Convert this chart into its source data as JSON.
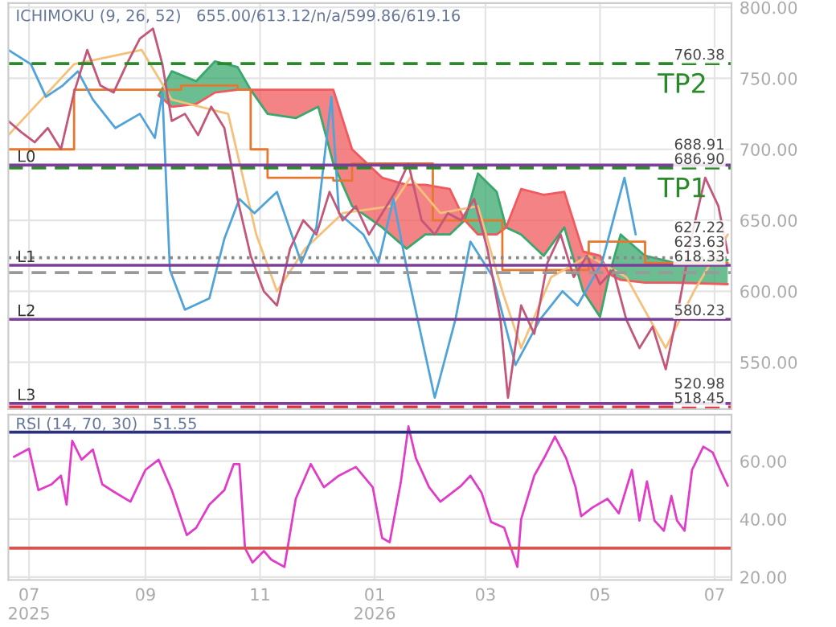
{
  "chart_data": [
    {
      "type": "line",
      "title": "ICHIMOKU (9, 26, 52)   655.00/613.12/n/a/599.86/619.16",
      "tick_labels": "y",
      "grid": true,
      "xlim": [
        "2025-06-20",
        "2026-07-10"
      ],
      "xticks": [
        {
          "value": "2025-07-01",
          "label": null
        },
        {
          "value": "2025-09-01",
          "label": null
        },
        {
          "value": "2025-11-01",
          "label": null
        },
        {
          "value": "2026-01-01",
          "label": null
        },
        {
          "value": "2026-03-01",
          "label": null
        },
        {
          "value": "2026-05-01",
          "label": null
        },
        {
          "value": "2026-07-01",
          "label": null
        }
      ],
      "ylim": [
        517,
        803
      ],
      "yticks": [
        {
          "value": 550,
          "label": "550.00"
        },
        {
          "value": 600,
          "label": "600.00"
        },
        {
          "value": 650,
          "label": "650.00"
        },
        {
          "value": 700,
          "label": "700.00"
        },
        {
          "value": 750,
          "label": "750.00"
        },
        {
          "value": 800,
          "label": "800.00"
        }
      ],
      "series": [
        {
          "type": "line",
          "color": "#3aa76d",
          "x": [
            "2025-09-08",
            "2025-09-15",
            "2025-09-28",
            "2025-10-08",
            "2025-10-20",
            "2025-10-27",
            "2025-11-05",
            "2025-11-20",
            "2025-12-02",
            "2025-12-10",
            "2025-12-20",
            "2026-01-05",
            "2026-01-18",
            "2026-01-28",
            "2026-02-10",
            "2026-02-18",
            "2026-02-25",
            "2026-03-07",
            "2026-03-12",
            "2026-03-20",
            "2026-04-01",
            "2026-04-12",
            "2026-04-22",
            "2026-05-01",
            "2026-05-06",
            "2026-05-12",
            "2026-05-25",
            "2026-06-10",
            "2026-07-08"
          ],
          "values": [
            738,
            755,
            748,
            762,
            758,
            742,
            725,
            722,
            730,
            690,
            660,
            645,
            630,
            640,
            640,
            650,
            683,
            670,
            645,
            640,
            625,
            645,
            600,
            582,
            612,
            640,
            625,
            620,
            622
          ],
          "lower": [
            738,
            730,
            732,
            740,
            742,
            742,
            null,
            null,
            null,
            null,
            null,
            null,
            null,
            null,
            null,
            650,
            640,
            640,
            645,
            null,
            null,
            null,
            null,
            null,
            612,
            608,
            606,
            606,
            605
          ],
          "upper": [
            738,
            755,
            748,
            762,
            758,
            742,
            null,
            null,
            null,
            null,
            null,
            null,
            null,
            null,
            null,
            650,
            683,
            670,
            645,
            null,
            null,
            null,
            null,
            null,
            612,
            640,
            625,
            620,
            622
          ]
        },
        {
          "type": "line",
          "color": "#f0595e",
          "x": [
            "2025-09-08",
            "2025-09-15",
            "2025-09-28",
            "2025-10-08",
            "2025-10-20",
            "2025-10-27",
            "2025-11-05",
            "2025-11-20",
            "2025-12-02",
            "2025-12-10",
            "2025-12-20",
            "2026-01-05",
            "2026-01-18",
            "2026-01-28",
            "2026-02-10",
            "2026-02-18",
            "2026-02-25",
            "2026-03-07",
            "2026-03-12",
            "2026-03-20",
            "2026-04-01",
            "2026-04-12",
            "2026-04-22",
            "2026-05-01",
            "2026-05-06",
            "2026-05-12",
            "2026-05-25",
            "2026-06-10",
            "2026-07-08"
          ],
          "values": [
            738,
            730,
            732,
            740,
            742,
            742,
            742,
            742,
            742,
            742,
            700,
            680,
            675,
            675,
            672,
            650,
            640,
            640,
            645,
            672,
            668,
            670,
            628,
            625,
            612,
            608,
            606,
            606,
            605
          ],
          "lower": [
            null,
            null,
            null,
            null,
            null,
            742,
            725,
            722,
            730,
            690,
            660,
            645,
            630,
            640,
            640,
            650,
            null,
            null,
            645,
            640,
            625,
            645,
            600,
            582,
            612,
            null,
            null,
            null,
            null
          ],
          "upper": [
            null,
            null,
            null,
            null,
            null,
            742,
            742,
            742,
            742,
            742,
            700,
            680,
            675,
            675,
            672,
            650,
            null,
            null,
            645,
            672,
            668,
            670,
            628,
            625,
            612,
            null,
            null,
            null,
            null
          ]
        },
        {
          "type": "step",
          "color": "#e8772e",
          "x": [
            "2025-06-20",
            "2025-07-20",
            "2025-07-25",
            "2025-09-20",
            "2025-10-20",
            "2025-10-27",
            "2025-11-05",
            "2025-12-10",
            "2025-12-20",
            "2026-01-20",
            "2026-02-01",
            "2026-03-05",
            "2026-03-10",
            "2026-04-20",
            "2026-04-25",
            "2026-05-20",
            "2026-05-25",
            "2026-06-20",
            "2026-07-08"
          ],
          "values": [
            700,
            700,
            742,
            745,
            742,
            700,
            680,
            678,
            690,
            690,
            650,
            650,
            615,
            615,
            635,
            635,
            620,
            620,
            620
          ]
        },
        {
          "color": "#f5c07a",
          "x": [
            "2025-06-20",
            "2025-07-25",
            "2025-08-30",
            "2025-09-15",
            "2025-10-15",
            "2025-10-30",
            "2025-11-10",
            "2025-11-25",
            "2025-12-15",
            "2026-01-10",
            "2026-01-20",
            "2026-02-05",
            "2026-02-25",
            "2026-03-10",
            "2026-03-20",
            "2026-04-05",
            "2026-04-25",
            "2026-05-15",
            "2026-06-05",
            "2026-06-20",
            "2026-07-08"
          ],
          "values": [
            710,
            760,
            770,
            735,
            725,
            640,
            600,
            630,
            655,
            660,
            680,
            655,
            660,
            600,
            560,
            610,
            625,
            610,
            560,
            600,
            640
          ]
        },
        {
          "color": "#4fa3d9",
          "x": [
            "2025-06-20",
            "2025-07-02",
            "2025-07-10",
            "2025-07-19",
            "2025-07-27",
            "2025-08-04",
            "2025-08-16",
            "2025-08-29",
            "2025-09-06",
            "2025-09-10",
            "2025-09-14",
            "2025-09-22",
            "2025-10-05",
            "2025-10-13",
            "2025-10-21",
            "2025-10-29",
            "2025-11-10",
            "2025-11-23",
            "2025-12-01",
            "2025-12-09",
            "2025-12-13",
            "2025-12-26",
            "2026-01-03",
            "2026-01-11",
            "2026-01-19",
            "2026-02-02",
            "2026-02-13",
            "2026-02-21",
            "2026-03-05",
            "2026-03-17",
            "2026-03-30",
            "2026-04-11",
            "2026-04-19",
            "2026-05-02",
            "2026-05-14",
            "2026-05-20"
          ],
          "values": [
            770,
            760,
            737,
            745,
            755,
            735,
            715,
            725,
            708,
            740,
            615,
            587,
            595,
            637,
            665,
            655,
            670,
            620,
            645,
            737,
            655,
            640,
            620,
            665,
            610,
            525,
            580,
            635,
            610,
            548,
            580,
            600,
            590,
            620,
            680,
            640
          ]
        },
        {
          "color": "#c2577a",
          "x": [
            "2025-06-20",
            "2025-06-27",
            "2025-07-04",
            "2025-07-11",
            "2025-07-18",
            "2025-07-25",
            "2025-08-01",
            "2025-08-08",
            "2025-08-15",
            "2025-08-22",
            "2025-08-29",
            "2025-09-05",
            "2025-09-10",
            "2025-09-15",
            "2025-09-22",
            "2025-09-29",
            "2025-10-06",
            "2025-10-13",
            "2025-10-20",
            "2025-10-27",
            "2025-11-03",
            "2025-11-10",
            "2025-11-17",
            "2025-11-24",
            "2025-12-01",
            "2025-12-08",
            "2025-12-15",
            "2025-12-22",
            "2025-12-29",
            "2026-01-05",
            "2026-01-12",
            "2026-01-19",
            "2026-01-26",
            "2026-02-02",
            "2026-02-09",
            "2026-02-16",
            "2026-02-23",
            "2026-03-02",
            "2026-03-09",
            "2026-03-13",
            "2026-03-20",
            "2026-03-27",
            "2026-04-03",
            "2026-04-10",
            "2026-04-17",
            "2026-04-24",
            "2026-05-01",
            "2026-05-08",
            "2026-05-15",
            "2026-05-22",
            "2026-05-29",
            "2026-06-05",
            "2026-06-12",
            "2026-06-19",
            "2026-06-26",
            "2026-07-03",
            "2026-07-08"
          ],
          "values": [
            720,
            712,
            705,
            715,
            700,
            740,
            770,
            745,
            740,
            760,
            778,
            785,
            760,
            720,
            725,
            710,
            730,
            715,
            665,
            625,
            600,
            590,
            630,
            650,
            640,
            670,
            650,
            660,
            640,
            655,
            670,
            690,
            650,
            640,
            655,
            650,
            665,
            630,
            580,
            525,
            590,
            570,
            620,
            640,
            610,
            625,
            605,
            615,
            580,
            560,
            575,
            545,
            590,
            640,
            680,
            660,
            627
          ]
        }
      ],
      "ref_lines": [
        {
          "axis": "y",
          "value": 760.38,
          "label": "TP2",
          "color": "#2a8a2a",
          "line_style": "dashed"
        },
        {
          "axis": "y",
          "value": 686.9,
          "label": "TP1",
          "color": "#2a8a2a",
          "line_style": "dashed"
        },
        {
          "axis": "y",
          "value": 688.91,
          "label": "L0",
          "color": "#7b3f98",
          "line_style": "solid"
        },
        {
          "axis": "y",
          "value": 623.63,
          "color": "#888888",
          "line_style": "dotted"
        },
        {
          "axis": "y",
          "value": 618.33,
          "label": "L1",
          "color": "#7b3f98",
          "line_style": "solid"
        },
        {
          "axis": "y",
          "value": 613.12,
          "color": "#999999",
          "line_style": "dashed"
        },
        {
          "axis": "y",
          "value": 580.23,
          "label": "L2",
          "color": "#7b3f98",
          "line_style": "solid"
        },
        {
          "axis": "y",
          "value": 520.98,
          "label": "L3",
          "color": "#7b3f98",
          "line_style": "solid"
        },
        {
          "axis": "y",
          "value": 518.45,
          "color": "#e03040",
          "line_style": "dashed"
        }
      ],
      "annotations": [
        {
          "text": "760.38",
          "x": "2026-07-10",
          "y": 760.38
        },
        {
          "text": "688.91",
          "x": "2026-07-10",
          "y": 688.91
        },
        {
          "text": "686.90",
          "x": "2026-07-10",
          "y": 686.9
        },
        {
          "text": "623.63",
          "x": "2026-07-10",
          "y": 623.63
        },
        {
          "text": "618.33",
          "x": "2026-07-10",
          "y": 618.33
        },
        {
          "text": "580.23",
          "x": "2026-07-10",
          "y": 580.23
        },
        {
          "text": "520.98",
          "x": "2026-07-10",
          "y": 520.98
        },
        {
          "text": "518.45",
          "x": "2026-07-10",
          "y": 518.45
        },
        {
          "text": "627.22",
          "x": "2026-07-10",
          "y": 627.22
        }
      ]
    },
    {
      "type": "line",
      "title": "RSI (14, 70, 30)   51.55",
      "grid": true,
      "xlim": [
        "2025-06-20",
        "2026-07-10"
      ],
      "xticks": [
        {
          "value": "2025-07-01",
          "label": "07\n2025"
        },
        {
          "value": "2025-09-01",
          "label": "09"
        },
        {
          "value": "2025-11-01",
          "label": "11"
        },
        {
          "value": "2026-01-01",
          "label": "01\n2026"
        },
        {
          "value": "2026-03-01",
          "label": "03"
        },
        {
          "value": "2026-05-01",
          "label": "05"
        },
        {
          "value": "2026-07-01",
          "label": "07"
        }
      ],
      "ylim": [
        19,
        76
      ],
      "yticks": [
        {
          "value": 20,
          "label": "20.00"
        },
        {
          "value": 40,
          "label": "40.00"
        },
        {
          "value": 60,
          "label": "60.00"
        }
      ],
      "series": [
        {
          "color": "#e03cc8",
          "x": [
            "2025-06-23",
            "2025-07-01",
            "2025-07-06",
            "2025-07-13",
            "2025-07-18",
            "2025-07-21",
            "2025-07-24",
            "2025-07-29",
            "2025-08-04",
            "2025-08-09",
            "2025-08-15",
            "2025-08-24",
            "2025-09-01",
            "2025-09-08",
            "2025-09-15",
            "2025-09-23",
            "2025-09-28",
            "2025-10-05",
            "2025-10-13",
            "2025-10-18",
            "2025-10-21",
            "2025-10-24",
            "2025-10-28",
            "2025-11-03",
            "2025-11-07",
            "2025-11-14",
            "2025-11-20",
            "2025-11-28",
            "2025-12-05",
            "2025-12-13",
            "2025-12-22",
            "2025-12-31",
            "2026-01-05",
            "2026-01-09",
            "2026-01-15",
            "2026-01-19",
            "2026-01-23",
            "2026-01-30",
            "2026-02-05",
            "2026-02-11",
            "2026-02-16",
            "2026-02-21",
            "2026-02-27",
            "2026-03-04",
            "2026-03-11",
            "2026-03-18",
            "2026-03-20",
            "2026-03-27",
            "2026-04-02",
            "2026-04-07",
            "2026-04-13",
            "2026-04-18",
            "2026-04-21",
            "2026-04-27",
            "2026-05-05",
            "2026-05-11",
            "2026-05-18",
            "2026-05-22",
            "2026-05-26",
            "2026-05-30",
            "2026-06-04",
            "2026-06-08",
            "2026-06-11",
            "2026-06-15",
            "2026-06-19",
            "2026-06-25",
            "2026-06-30",
            "2026-07-04",
            "2026-07-08"
          ],
          "values": [
            61.5,
            64.3,
            50,
            52,
            55,
            45,
            67,
            60.5,
            64,
            52,
            49.5,
            46,
            57,
            60.5,
            50,
            34.5,
            37,
            45,
            50,
            59,
            59,
            30,
            25,
            29,
            26,
            23.5,
            47,
            59,
            51,
            55,
            58,
            51,
            33.5,
            32,
            53,
            72,
            61,
            51,
            46,
            49,
            51.5,
            55,
            49,
            39,
            37,
            23.5,
            40,
            55,
            62,
            68.5,
            61,
            51,
            41,
            44,
            47,
            42,
            57,
            39.5,
            53,
            39.5,
            36,
            48,
            39.5,
            36,
            57,
            65,
            63,
            57,
            51.5
          ]
        }
      ],
      "ref_lines": [
        {
          "axis": "y",
          "value": 70,
          "color": "#2c2f7a",
          "line_style": "solid"
        },
        {
          "axis": "y",
          "value": 30,
          "color": "#d9534f",
          "line_style": "solid"
        }
      ]
    }
  ]
}
